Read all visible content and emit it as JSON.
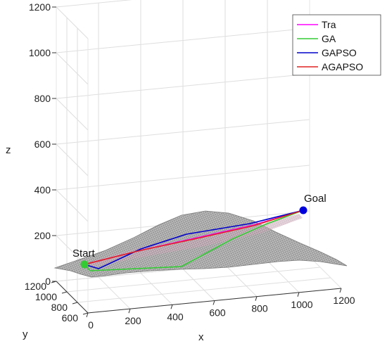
{
  "chart_data": {
    "type": "line",
    "dimension": "3d",
    "title": "",
    "xlabel": "x",
    "ylabel": "y",
    "zlabel": "z",
    "xlim": [
      0,
      1200
    ],
    "ylim": [
      600,
      1200
    ],
    "zlim": [
      0,
      1200
    ],
    "x_ticks": [
      "0",
      "200",
      "400",
      "600",
      "800",
      "1000",
      "1200"
    ],
    "y_ticks": [
      "600",
      "800",
      "1000",
      "1200"
    ],
    "z_ticks": [
      "0",
      "200",
      "400",
      "600",
      "800",
      "1000",
      "1200"
    ],
    "grid": true,
    "legend_position": "top-right",
    "terrain": {
      "description_color": "#8c8c8c",
      "mesh_color": "#d9d9d9",
      "peak_z": 320
    },
    "series": [
      {
        "name": "Tra",
        "color": "#ff00ff"
      },
      {
        "name": "GA",
        "color": "#33cc33"
      },
      {
        "name": "GAPSO",
        "color": "#0000cc"
      },
      {
        "name": "AGAPSO",
        "color": "#e02020"
      }
    ],
    "annotations": [
      {
        "text": "Start",
        "color": "#33cc33"
      },
      {
        "text": "Goal",
        "color": "#0000dd"
      }
    ]
  }
}
